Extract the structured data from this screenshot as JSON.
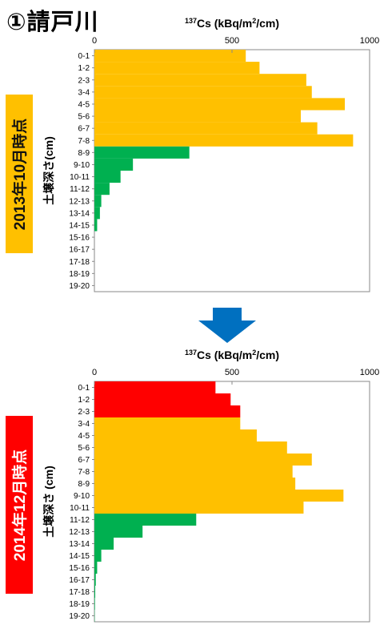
{
  "title": "①請戸川",
  "colors": {
    "yellow": "#ffc000",
    "green": "#00b050",
    "red": "#ff0000",
    "arrow": "#0070c0"
  },
  "arrow_icon": "down-arrow-icon",
  "charts": [
    {
      "side_label": "2013年10月時点",
      "side_label_color": "#ffc000"
    },
    {
      "side_label": "2014年12月時点",
      "side_label_color": "#ff0000"
    }
  ],
  "chart_data": [
    {
      "type": "bar",
      "orientation": "horizontal",
      "title": "137Cs (kBq/m2/cm)",
      "title_parts": {
        "superscript": "137",
        "main": "Cs (kBq/m",
        "exponent": "2",
        "tail": "/cm)"
      },
      "xlabel": "137Cs (kBq/m2/cm)",
      "ylabel": "土壌深さ(cm)",
      "xlim": [
        0,
        1000
      ],
      "xticks": [
        "0",
        "500",
        "1000"
      ],
      "categories": [
        "0-1",
        "1-2",
        "2-3",
        "3-4",
        "4-5",
        "5-6",
        "6-7",
        "7-8",
        "8-9",
        "9-10",
        "10-11",
        "11-12",
        "12-13",
        "13-14",
        "14-15",
        "15-16",
        "16-17",
        "17-18",
        "18-19",
        "19-20"
      ],
      "values": [
        550,
        600,
        770,
        790,
        910,
        750,
        810,
        940,
        345,
        140,
        95,
        55,
        25,
        20,
        10,
        0,
        0,
        0,
        0,
        0
      ],
      "bar_colors": [
        "yellow",
        "yellow",
        "yellow",
        "yellow",
        "yellow",
        "yellow",
        "yellow",
        "yellow",
        "green",
        "green",
        "green",
        "green",
        "green",
        "green",
        "green",
        "green",
        "green",
        "green",
        "green",
        "green"
      ],
      "grid": false
    },
    {
      "type": "bar",
      "orientation": "horizontal",
      "title": "137Cs (kBq/m2/cm)",
      "title_parts": {
        "superscript": "137",
        "main": "Cs (kBq/m",
        "exponent": "2",
        "tail": "/cm)"
      },
      "xlabel": "137Cs (kBq/m2/cm)",
      "ylabel": "土壌深さ (cm)",
      "xlim": [
        0,
        1000
      ],
      "xticks": [
        "0",
        "500",
        "1000"
      ],
      "categories": [
        "0-1",
        "1-2",
        "2-3",
        "3-4",
        "4-5",
        "5-6",
        "6-7",
        "7-8",
        "8-9",
        "9-10",
        "10-11",
        "11-12",
        "12-13",
        "13-14",
        "14-15",
        "15-16",
        "16-17",
        "17-18",
        "18-19",
        "19-20"
      ],
      "values": [
        440,
        495,
        530,
        530,
        590,
        700,
        790,
        720,
        730,
        905,
        760,
        370,
        175,
        70,
        25,
        10,
        5,
        3,
        2,
        1
      ],
      "bar_colors": [
        "red",
        "red",
        "red",
        "yellow",
        "yellow",
        "yellow",
        "yellow",
        "yellow",
        "yellow",
        "yellow",
        "yellow",
        "green",
        "green",
        "green",
        "green",
        "green",
        "green",
        "green",
        "green",
        "green"
      ],
      "grid": false
    }
  ]
}
